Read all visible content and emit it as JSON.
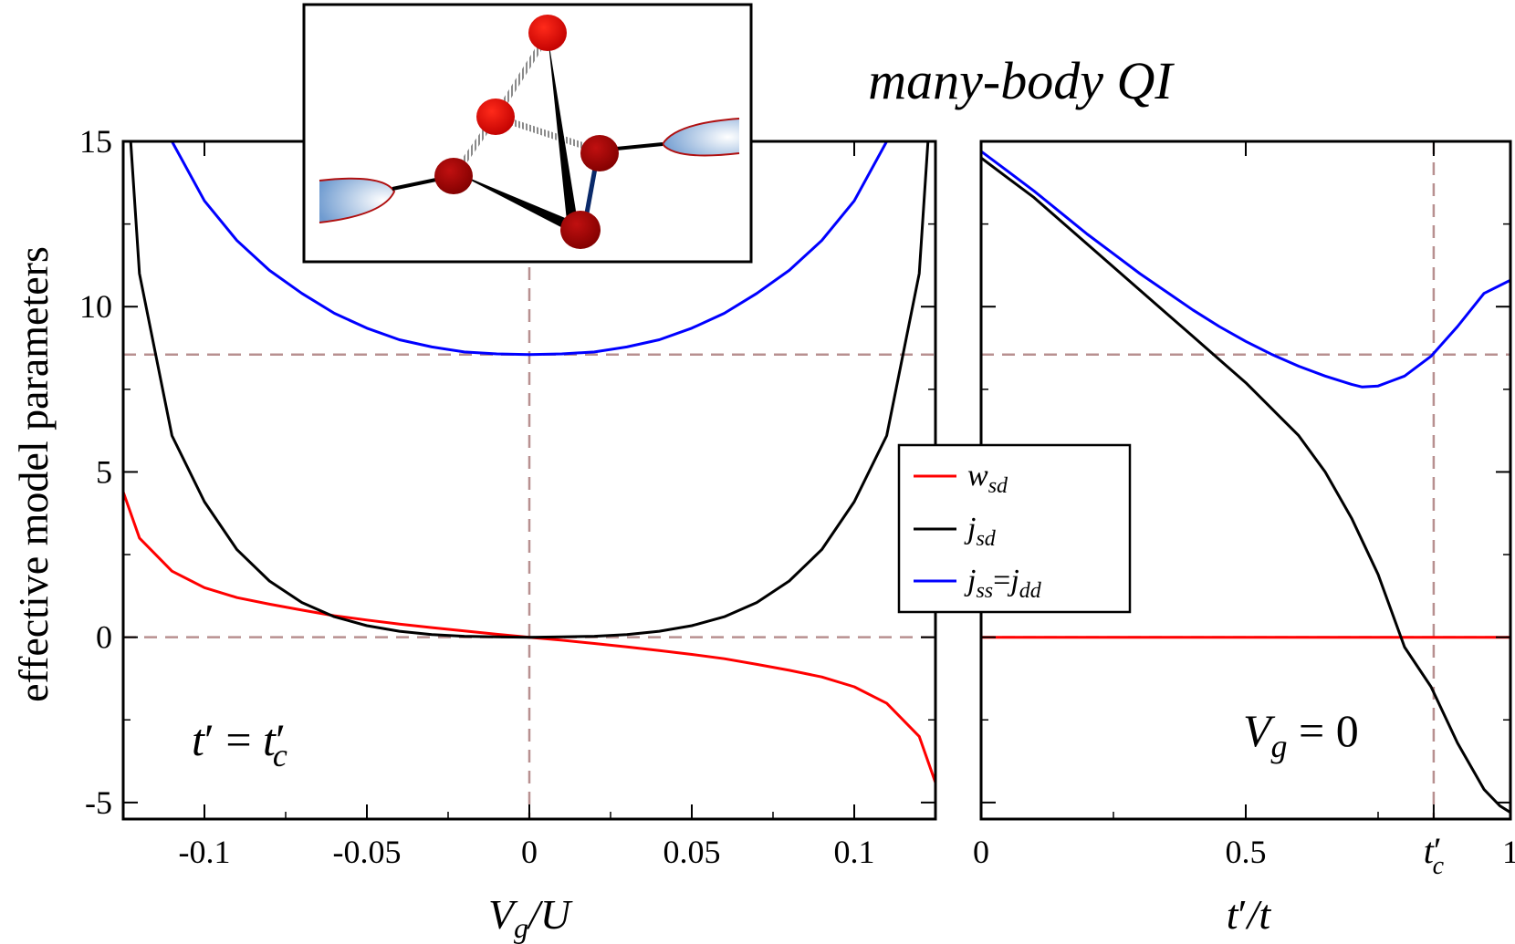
{
  "title": "many-body QI",
  "ylabel": "effective model parameters",
  "legend": {
    "placement": "center-right of left panel",
    "entries": [
      {
        "label": "w_sd",
        "color": "#ff0000"
      },
      {
        "label": "j_sd",
        "color": "#000000"
      },
      {
        "label": "j_ss=j_dd",
        "color": "#0000ff"
      }
    ]
  },
  "colors": {
    "w_sd": "#ff0000",
    "j_sd": "#000000",
    "j_ss": "#0000ff",
    "guide": "#b89090"
  },
  "chart_data": [
    {
      "type": "line",
      "panel": "left",
      "xlabel": "V_g/U",
      "ylabel": "effective model parameters",
      "annotation": "t' = t'_c",
      "xlim": [
        -0.125,
        0.125
      ],
      "ylim": [
        -5.5,
        15
      ],
      "xticks": [
        -0.1,
        -0.05,
        0,
        0.05,
        0.1
      ],
      "xtick_labels": [
        "-0.1",
        "-0.05",
        "0",
        "0.05",
        "0.1"
      ],
      "yticks": [
        -5,
        0,
        5,
        10,
        15
      ],
      "ytick_labels": [
        "-5",
        "0",
        "5",
        "10",
        "15"
      ],
      "guides": {
        "vertical": [
          0
        ],
        "horizontal": [
          0,
          8.55
        ]
      },
      "series": [
        {
          "name": "w_sd",
          "key": "w_sd",
          "x": [
            -0.125,
            -0.12,
            -0.11,
            -0.1,
            -0.09,
            -0.08,
            -0.07,
            -0.06,
            -0.05,
            -0.04,
            -0.03,
            -0.02,
            -0.01,
            0,
            0.01,
            0.02,
            0.03,
            0.04,
            0.05,
            0.06,
            0.07,
            0.08,
            0.09,
            0.1,
            0.11,
            0.12,
            0.125
          ],
          "y": [
            4.4,
            3.0,
            2.0,
            1.5,
            1.2,
            1.0,
            0.82,
            0.65,
            0.52,
            0.4,
            0.29,
            0.19,
            0.09,
            0,
            -0.09,
            -0.19,
            -0.29,
            -0.4,
            -0.52,
            -0.65,
            -0.82,
            -1.0,
            -1.2,
            -1.5,
            -2.0,
            -3.0,
            -4.4
          ]
        },
        {
          "name": "j_sd",
          "key": "j_sd",
          "x": [
            -0.1227,
            -0.12,
            -0.11,
            -0.1,
            -0.09,
            -0.08,
            -0.07,
            -0.06,
            -0.05,
            -0.04,
            -0.03,
            -0.02,
            -0.01,
            0,
            0.01,
            0.02,
            0.03,
            0.04,
            0.05,
            0.06,
            0.07,
            0.08,
            0.09,
            0.1,
            0.11,
            0.12,
            0.1227
          ],
          "y": [
            15,
            11.0,
            6.1,
            4.1,
            2.65,
            1.7,
            1.05,
            0.62,
            0.35,
            0.18,
            0.08,
            0.03,
            0.01,
            0,
            0.01,
            0.03,
            0.08,
            0.18,
            0.35,
            0.62,
            1.05,
            1.7,
            2.65,
            4.1,
            6.1,
            11.0,
            15
          ]
        },
        {
          "name": "j_ss=j_dd",
          "key": "j_ss",
          "x": [
            -0.11,
            -0.1,
            -0.09,
            -0.08,
            -0.07,
            -0.06,
            -0.05,
            -0.04,
            -0.03,
            -0.02,
            -0.01,
            0,
            0.01,
            0.02,
            0.03,
            0.04,
            0.05,
            0.06,
            0.07,
            0.08,
            0.09,
            0.1,
            0.11
          ],
          "y": [
            15,
            13.2,
            12.0,
            11.1,
            10.4,
            9.8,
            9.35,
            9.0,
            8.78,
            8.63,
            8.57,
            8.55,
            8.57,
            8.63,
            8.78,
            9.0,
            9.35,
            9.8,
            10.4,
            11.1,
            12.0,
            13.2,
            15
          ]
        }
      ]
    },
    {
      "type": "line",
      "panel": "right",
      "xlabel": "t'/t",
      "annotation": "V_g = 0",
      "xlim": [
        0,
        1
      ],
      "ylim": [
        -5.5,
        15
      ],
      "xticks": [
        0,
        0.5,
        0.855,
        1
      ],
      "xtick_labels": [
        "0",
        "0.5",
        "t'_c",
        "1"
      ],
      "yticks": [
        -5,
        0,
        5,
        10,
        15
      ],
      "guides": {
        "vertical": [
          0.855
        ],
        "horizontal": [
          0,
          8.55
        ]
      },
      "series": [
        {
          "name": "w_sd",
          "key": "w_sd",
          "x": [
            0,
            0.5,
            1
          ],
          "y": [
            0,
            0,
            0
          ]
        },
        {
          "name": "j_sd",
          "key": "j_sd",
          "x": [
            0,
            0.05,
            0.1,
            0.15,
            0.2,
            0.25,
            0.3,
            0.35,
            0.4,
            0.45,
            0.5,
            0.55,
            0.6,
            0.65,
            0.7,
            0.75,
            0.8,
            0.85,
            0.9,
            0.95,
            0.98,
            1.0
          ],
          "y": [
            14.5,
            13.9,
            13.3,
            12.6,
            11.9,
            11.2,
            10.5,
            9.8,
            9.1,
            8.4,
            7.7,
            6.9,
            6.1,
            5.0,
            3.6,
            1.9,
            -0.3,
            -1.5,
            -3.2,
            -4.6,
            -5.1,
            -5.3
          ]
        },
        {
          "name": "j_ss=j_dd",
          "key": "j_ss",
          "x": [
            0,
            0.05,
            0.1,
            0.15,
            0.2,
            0.25,
            0.3,
            0.35,
            0.4,
            0.45,
            0.5,
            0.55,
            0.6,
            0.65,
            0.7,
            0.72,
            0.75,
            0.8,
            0.85,
            0.9,
            0.95,
            1.0
          ],
          "y": [
            14.7,
            14.1,
            13.5,
            12.85,
            12.2,
            11.6,
            11.0,
            10.45,
            9.9,
            9.4,
            8.95,
            8.55,
            8.2,
            7.9,
            7.65,
            7.57,
            7.6,
            7.9,
            8.5,
            9.4,
            10.4,
            10.8
          ]
        }
      ]
    }
  ]
}
